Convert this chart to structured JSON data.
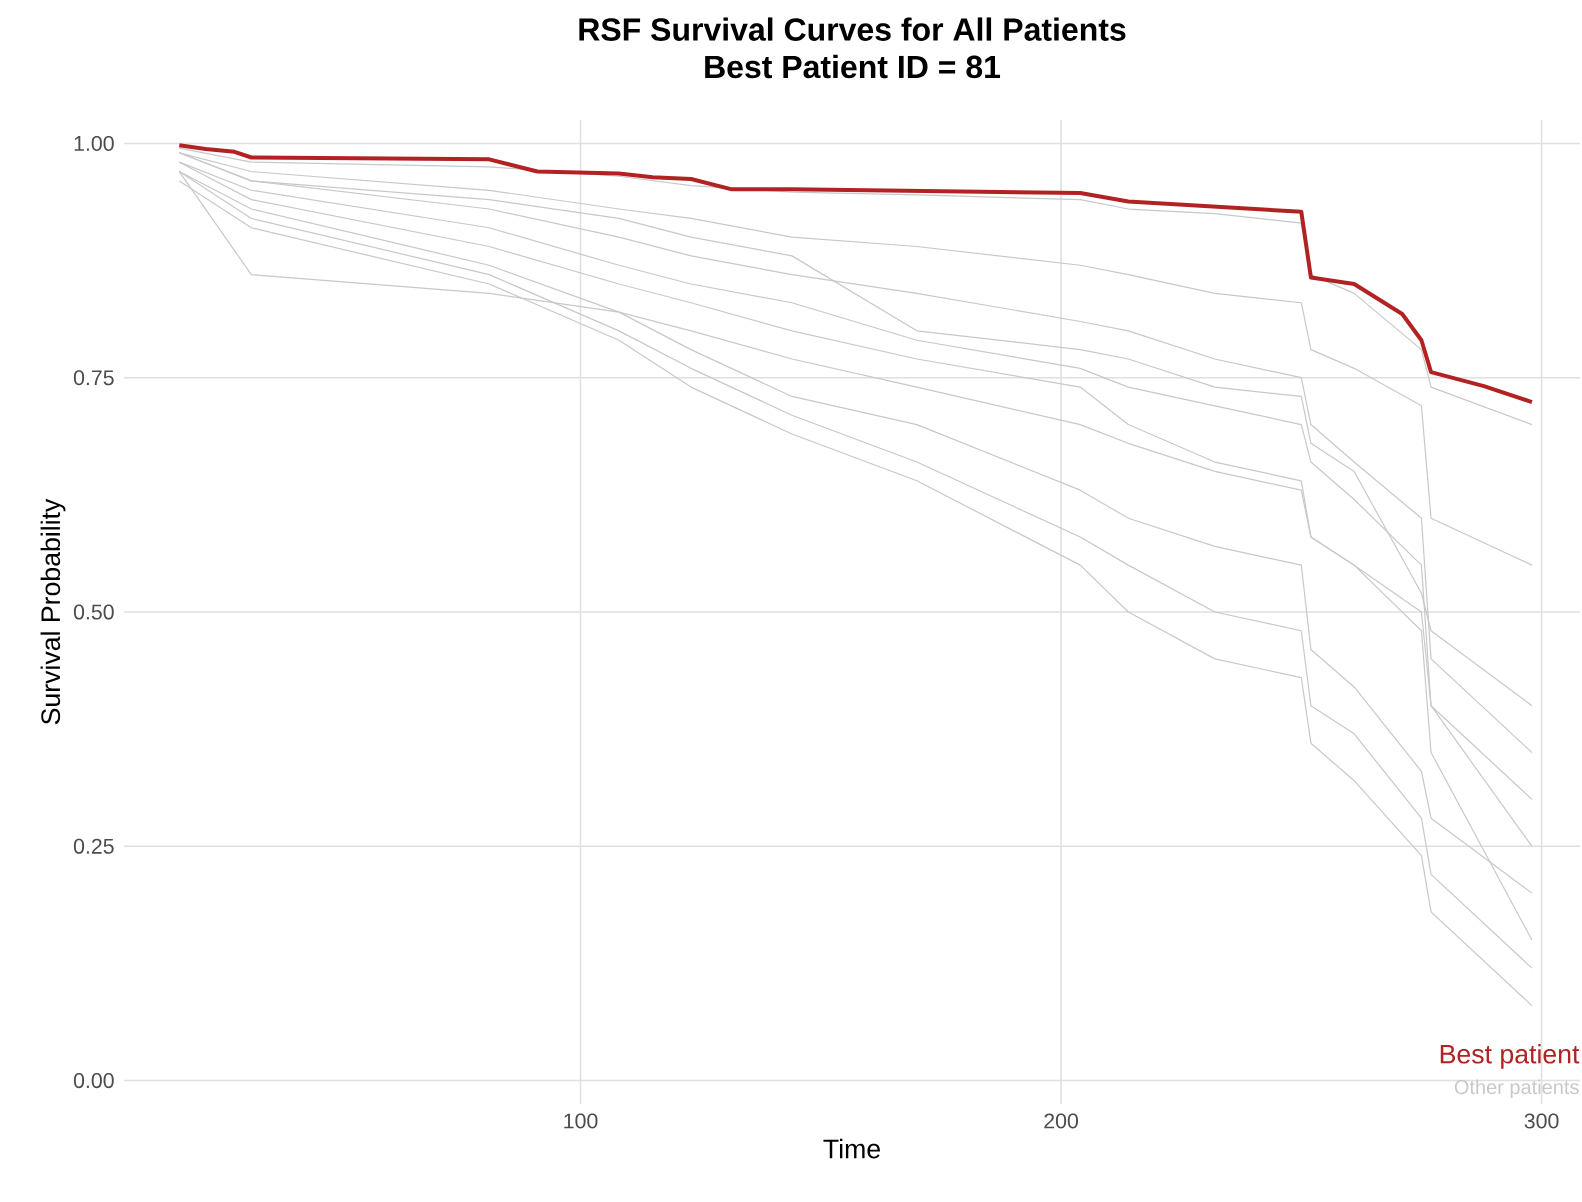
{
  "chart_data": {
    "type": "line",
    "title": "RSF Survival Curves for All Patients",
    "subtitle": "Best Patient ID = 81",
    "xlabel": "Time",
    "ylabel": "Survival Probability",
    "xlim": [
      5,
      308
    ],
    "ylim": [
      -0.025,
      1.025
    ],
    "xticks": [
      100,
      200,
      300
    ],
    "yticks": [
      {
        "value": 0,
        "label": "0.00"
      },
      {
        "value": 0.25,
        "label": "0.25"
      },
      {
        "value": 0.5,
        "label": "0.50"
      },
      {
        "value": 0.75,
        "label": "0.75"
      },
      {
        "value": 1,
        "label": "1.00"
      }
    ],
    "grid": true,
    "legend": "bottom right",
    "marker": "none",
    "line_style": "solid",
    "x": [
      16.5,
      31.5,
      81,
      108,
      123,
      144,
      170,
      204,
      214,
      232,
      250,
      252,
      261,
      275,
      277,
      298
    ],
    "series": [
      {
        "name": "Other patients",
        "color": "#c8c8c8",
        "values": [
          0.995,
          0.98,
          0.975,
          0.965,
          0.955,
          0.948,
          0.945,
          0.94,
          0.93,
          0.925,
          0.915,
          0.86,
          0.84,
          0.78,
          0.74,
          0.7
        ]
      },
      {
        "color": "#c8c8c8",
        "values": [
          0.99,
          0.97,
          0.95,
          0.93,
          0.92,
          0.9,
          0.89,
          0.87,
          0.86,
          0.84,
          0.83,
          0.78,
          0.76,
          0.72,
          0.6,
          0.55
        ]
      },
      {
        "color": "#c8c8c8",
        "values": [
          0.99,
          0.96,
          0.93,
          0.9,
          0.88,
          0.86,
          0.84,
          0.81,
          0.8,
          0.77,
          0.75,
          0.7,
          0.66,
          0.6,
          0.45,
          0.35
        ]
      },
      {
        "color": "#c8c8c8",
        "values": [
          0.98,
          0.95,
          0.91,
          0.87,
          0.85,
          0.83,
          0.79,
          0.76,
          0.74,
          0.72,
          0.7,
          0.66,
          0.62,
          0.55,
          0.4,
          0.25
        ]
      },
      {
        "color": "#c8c8c8",
        "values": [
          0.98,
          0.94,
          0.89,
          0.85,
          0.83,
          0.8,
          0.77,
          0.74,
          0.7,
          0.66,
          0.64,
          0.58,
          0.55,
          0.48,
          0.35,
          0.15
        ]
      },
      {
        "color": "#c8c8c8",
        "values": [
          0.97,
          0.93,
          0.87,
          0.82,
          0.78,
          0.73,
          0.7,
          0.63,
          0.6,
          0.57,
          0.55,
          0.46,
          0.42,
          0.33,
          0.28,
          0.2
        ]
      },
      {
        "color": "#c8c8c8",
        "values": [
          0.97,
          0.92,
          0.86,
          0.8,
          0.76,
          0.71,
          0.66,
          0.58,
          0.55,
          0.5,
          0.48,
          0.4,
          0.37,
          0.28,
          0.22,
          0.12
        ]
      },
      {
        "color": "#c8c8c8",
        "values": [
          0.96,
          0.91,
          0.85,
          0.79,
          0.74,
          0.69,
          0.64,
          0.55,
          0.5,
          0.45,
          0.43,
          0.36,
          0.32,
          0.24,
          0.18,
          0.08
        ]
      },
      {
        "color": "#c8c8c8",
        "values": [
          0.97,
          0.86,
          0.84,
          0.82,
          0.8,
          0.77,
          0.74,
          0.7,
          0.68,
          0.65,
          0.63,
          0.58,
          0.55,
          0.5,
          0.4,
          0.3
        ]
      },
      {
        "color": "#c8c8c8",
        "values": [
          0.99,
          0.96,
          0.94,
          0.92,
          0.9,
          0.88,
          0.8,
          0.78,
          0.77,
          0.74,
          0.73,
          0.68,
          0.65,
          0.52,
          0.48,
          0.4
        ]
      },
      {
        "name": "Best patient",
        "color": "#b22222",
        "x": [
          16.5,
          22,
          28,
          31.5,
          81,
          91,
          108,
          115,
          123,
          131.5,
          144,
          204,
          214,
          250,
          252,
          261,
          271,
          275,
          277,
          288,
          298
        ],
        "values": [
          0.998,
          0.994,
          0.991,
          0.985,
          0.983,
          0.97,
          0.968,
          0.964,
          0.962,
          0.951,
          0.951,
          0.947,
          0.938,
          0.927,
          0.857,
          0.85,
          0.818,
          0.79,
          0.756,
          0.741,
          0.724
        ]
      }
    ]
  }
}
